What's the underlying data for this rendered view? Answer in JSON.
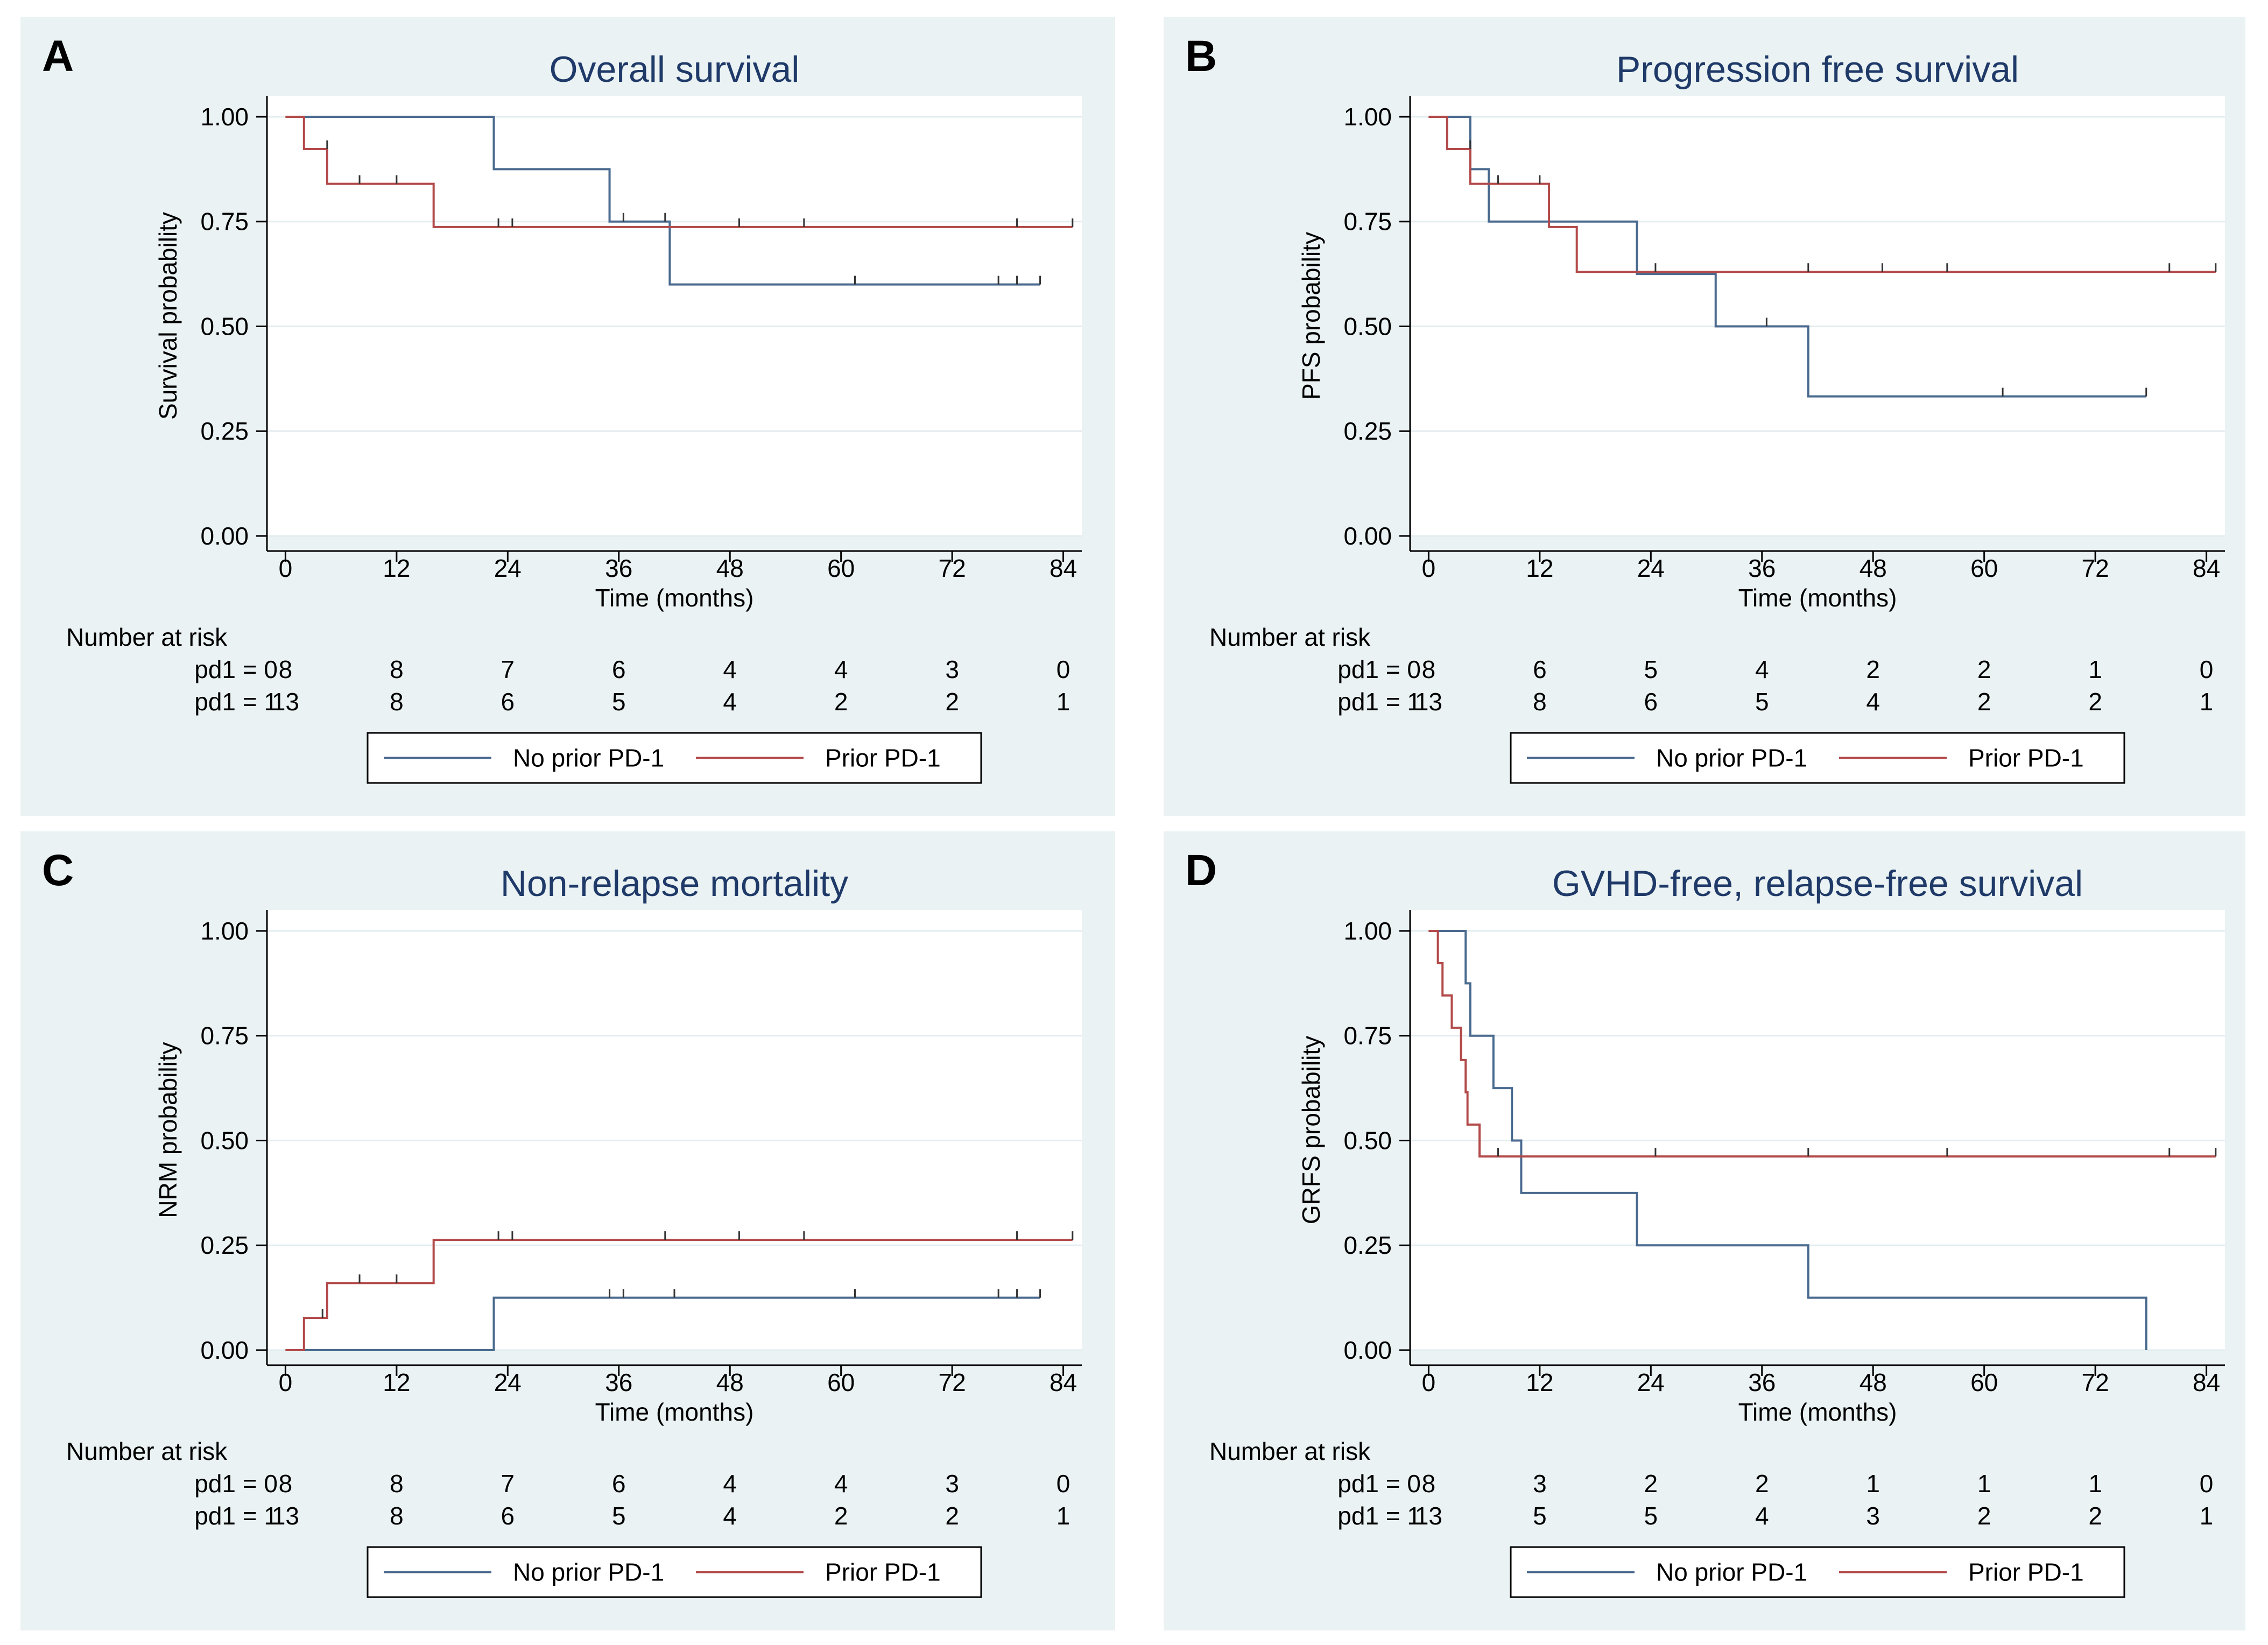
{
  "colors": {
    "panel_background": "#eaf2f3",
    "plot_background": "#ffffff",
    "no_prior": "#4a6a8f",
    "prior": "#b34a4a",
    "grid": "#e3ecef",
    "title": "#1f3a68"
  },
  "chart_data": [
    {
      "type": "line",
      "panel_letter": "A",
      "title": "Overall survival",
      "xlabel": "Time (months)",
      "ylabel": "Survival probability",
      "xlim": [
        -2,
        86
      ],
      "ylim": [
        0,
        1.05
      ],
      "x_ticks": [
        0,
        12,
        24,
        36,
        48,
        60,
        72,
        84
      ],
      "y_ticks": [
        0.0,
        0.25,
        0.5,
        0.75,
        1.0
      ],
      "y_tick_labels": [
        "0.00",
        "0.25",
        "0.50",
        "0.75",
        "1.00"
      ],
      "grid": true,
      "legend_position": "bottom",
      "series": [
        {
          "name": "No prior PD-1",
          "color": "#4a6a8f",
          "steps": [
            [
              0,
              1.0
            ],
            [
              22.5,
              0.875
            ],
            [
              35,
              0.75
            ],
            [
              41.5,
              0.6
            ],
            [
              81.5,
              0.6
            ]
          ],
          "censor_x": [
            36.5,
            41,
            61.5,
            77,
            79,
            81.5
          ],
          "censor_y": [
            0.75,
            0.75,
            0.6,
            0.6,
            0.6,
            0.6
          ]
        },
        {
          "name": "Prior PD-1",
          "color": "#b34a4a",
          "steps": [
            [
              0,
              1.0
            ],
            [
              2,
              0.923
            ],
            [
              4.5,
              0.84
            ],
            [
              16,
              0.737
            ],
            [
              85,
              0.737
            ]
          ],
          "censor_x": [
            4.5,
            8,
            12,
            23,
            24.5,
            49,
            56,
            79,
            85
          ],
          "censor_y": [
            0.923,
            0.84,
            0.84,
            0.737,
            0.737,
            0.737,
            0.737,
            0.737,
            0.737
          ]
        }
      ],
      "risk_table": {
        "header": "Number at risk",
        "rows": [
          {
            "label": "pd1 = 0",
            "values": [
              "8",
              "8",
              "7",
              "6",
              "4",
              "4",
              "3",
              "0"
            ]
          },
          {
            "label": "pd1 = 1",
            "values": [
              "13",
              "8",
              "6",
              "5",
              "4",
              "2",
              "2",
              "1"
            ]
          }
        ]
      },
      "legend": [
        "No prior PD-1",
        "Prior PD-1"
      ]
    },
    {
      "type": "line",
      "panel_letter": "B",
      "title": "Progression free survival",
      "xlabel": "Time (months)",
      "ylabel": "PFS probability",
      "xlim": [
        -2,
        86
      ],
      "ylim": [
        0,
        1.05
      ],
      "x_ticks": [
        0,
        12,
        24,
        36,
        48,
        60,
        72,
        84
      ],
      "y_ticks": [
        0.0,
        0.25,
        0.5,
        0.75,
        1.0
      ],
      "y_tick_labels": [
        "0.00",
        "0.25",
        "0.50",
        "0.75",
        "1.00"
      ],
      "grid": true,
      "legend_position": "bottom",
      "series": [
        {
          "name": "No prior PD-1",
          "color": "#4a6a8f",
          "steps": [
            [
              0,
              1.0
            ],
            [
              4.5,
              0.875
            ],
            [
              6.5,
              0.75
            ],
            [
              22.5,
              0.625
            ],
            [
              31,
              0.5
            ],
            [
              41,
              0.333
            ],
            [
              77.5,
              0.333
            ]
          ],
          "censor_x": [
            36.5,
            62,
            77.5
          ],
          "censor_y": [
            0.5,
            0.333,
            0.333
          ]
        },
        {
          "name": "Prior PD-1",
          "color": "#b34a4a",
          "steps": [
            [
              0,
              1.0
            ],
            [
              2,
              0.923
            ],
            [
              4.5,
              0.84
            ],
            [
              13,
              0.737
            ],
            [
              16,
              0.63
            ],
            [
              85,
              0.63
            ]
          ],
          "censor_x": [
            4.5,
            7.5,
            12,
            24.5,
            41,
            49,
            56,
            80,
            85
          ],
          "censor_y": [
            0.923,
            0.84,
            0.84,
            0.63,
            0.63,
            0.63,
            0.63,
            0.63,
            0.63
          ]
        }
      ],
      "risk_table": {
        "header": "Number at risk",
        "rows": [
          {
            "label": "pd1 = 0",
            "values": [
              "8",
              "6",
              "5",
              "4",
              "2",
              "2",
              "1",
              "0"
            ]
          },
          {
            "label": "pd1 = 1",
            "values": [
              "13",
              "8",
              "6",
              "5",
              "4",
              "2",
              "2",
              "1"
            ]
          }
        ]
      },
      "legend": [
        "No prior PD-1",
        "Prior PD-1"
      ]
    },
    {
      "type": "line",
      "panel_letter": "C",
      "title": "Non-relapse mortality",
      "xlabel": "Time (months)",
      "ylabel": "NRM probability",
      "xlim": [
        -2,
        86
      ],
      "ylim": [
        0,
        1.05
      ],
      "x_ticks": [
        0,
        12,
        24,
        36,
        48,
        60,
        72,
        84
      ],
      "y_ticks": [
        0.0,
        0.25,
        0.5,
        0.75,
        1.0
      ],
      "y_tick_labels": [
        "0.00",
        "0.25",
        "0.50",
        "0.75",
        "1.00"
      ],
      "grid": true,
      "legend_position": "bottom",
      "series": [
        {
          "name": "No prior PD-1",
          "color": "#4a6a8f",
          "steps": [
            [
              0,
              0.0
            ],
            [
              22.5,
              0.125
            ],
            [
              81.5,
              0.125
            ]
          ],
          "censor_x": [
            35,
            36.5,
            42,
            61.5,
            77,
            79,
            81.5
          ],
          "censor_y": [
            0.125,
            0.125,
            0.125,
            0.125,
            0.125,
            0.125,
            0.125
          ]
        },
        {
          "name": "Prior PD-1",
          "color": "#b34a4a",
          "steps": [
            [
              0,
              0.0
            ],
            [
              2,
              0.077
            ],
            [
              4.5,
              0.16
            ],
            [
              16,
              0.263
            ],
            [
              85,
              0.263
            ]
          ],
          "censor_x": [
            4,
            8,
            12,
            23,
            24.5,
            41,
            49,
            56,
            79,
            85
          ],
          "censor_y": [
            0.077,
            0.16,
            0.16,
            0.263,
            0.263,
            0.263,
            0.263,
            0.263,
            0.263,
            0.263
          ]
        }
      ],
      "risk_table": {
        "header": "Number at risk",
        "rows": [
          {
            "label": "pd1 = 0",
            "values": [
              "8",
              "8",
              "7",
              "6",
              "4",
              "4",
              "3",
              "0"
            ]
          },
          {
            "label": "pd1 = 1",
            "values": [
              "13",
              "8",
              "6",
              "5",
              "4",
              "2",
              "2",
              "1"
            ]
          }
        ]
      },
      "legend": [
        "No prior PD-1",
        "Prior PD-1"
      ]
    },
    {
      "type": "line",
      "panel_letter": "D",
      "title": "GVHD-free, relapse-free survival",
      "xlabel": "Time (months)",
      "ylabel": "GRFS probability",
      "xlim": [
        -2,
        86
      ],
      "ylim": [
        0,
        1.05
      ],
      "x_ticks": [
        0,
        12,
        24,
        36,
        48,
        60,
        72,
        84
      ],
      "y_ticks": [
        0.0,
        0.25,
        0.5,
        0.75,
        1.0
      ],
      "y_tick_labels": [
        "0.00",
        "0.25",
        "0.50",
        "0.75",
        "1.00"
      ],
      "grid": true,
      "legend_position": "bottom",
      "series": [
        {
          "name": "No prior PD-1",
          "color": "#4a6a8f",
          "steps": [
            [
              0,
              1.0
            ],
            [
              4,
              0.875
            ],
            [
              4.5,
              0.75
            ],
            [
              7,
              0.625
            ],
            [
              9,
              0.5
            ],
            [
              10,
              0.375
            ],
            [
              22.5,
              0.25
            ],
            [
              41,
              0.125
            ],
            [
              77.5,
              0.125
            ],
            [
              77.5,
              0.0
            ]
          ],
          "censor_x": [],
          "censor_y": []
        },
        {
          "name": "Prior PD-1",
          "color": "#b34a4a",
          "steps": [
            [
              0,
              1.0
            ],
            [
              1,
              0.923
            ],
            [
              1.5,
              0.846
            ],
            [
              2.5,
              0.769
            ],
            [
              3.5,
              0.692
            ],
            [
              4,
              0.615
            ],
            [
              4.2,
              0.538
            ],
            [
              5.5,
              0.462
            ],
            [
              85,
              0.462
            ]
          ],
          "censor_x": [
            7.5,
            24.5,
            41,
            56,
            80,
            85
          ],
          "censor_y": [
            0.462,
            0.462,
            0.462,
            0.462,
            0.462,
            0.462
          ]
        }
      ],
      "risk_table": {
        "header": "Number at risk",
        "rows": [
          {
            "label": "pd1 = 0",
            "values": [
              "8",
              "3",
              "2",
              "2",
              "1",
              "1",
              "1",
              "0"
            ]
          },
          {
            "label": "pd1 = 1",
            "values": [
              "13",
              "5",
              "5",
              "4",
              "3",
              "2",
              "2",
              "1"
            ]
          }
        ]
      },
      "legend": [
        "No prior PD-1",
        "Prior PD-1"
      ]
    }
  ]
}
